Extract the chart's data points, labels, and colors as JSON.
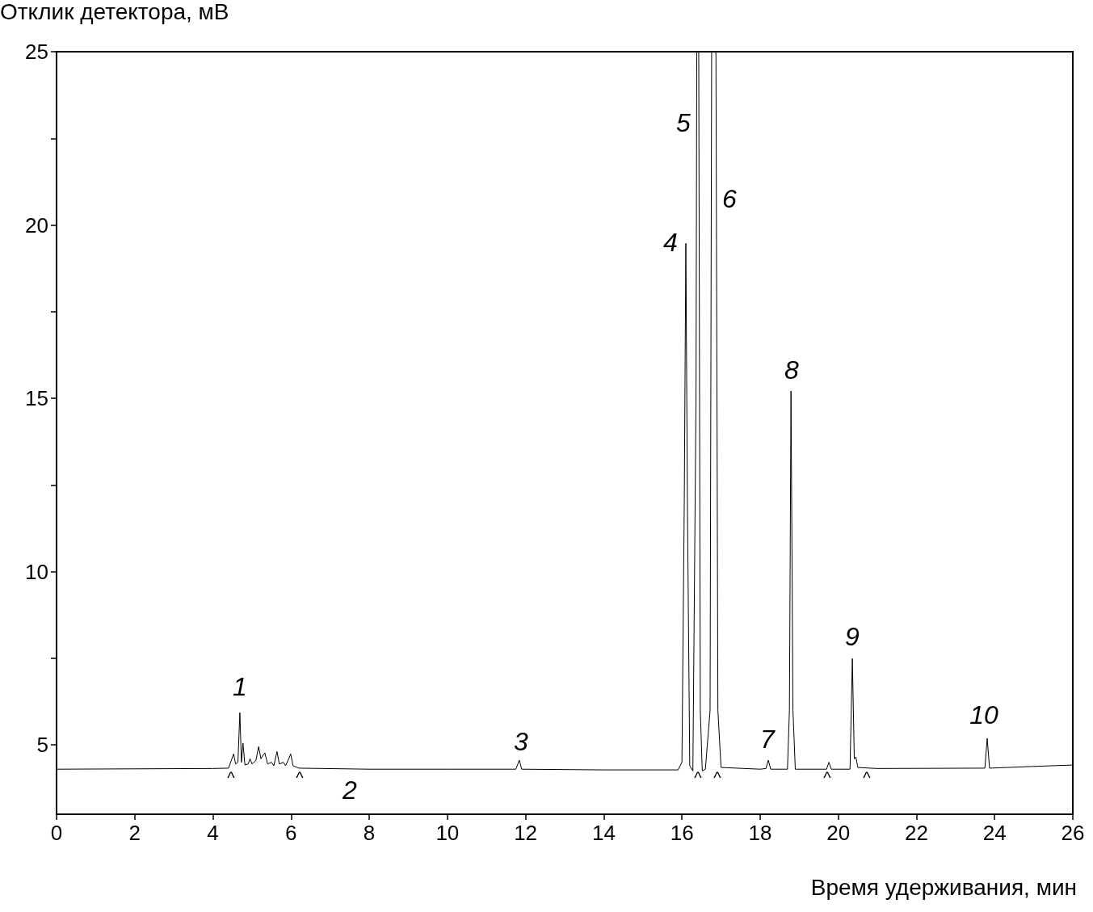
{
  "chart_data": {
    "type": "line",
    "xlabel": "Время удерживания, мин",
    "ylabel": "Отклик детектора, мВ",
    "xlim": [
      0,
      26
    ],
    "xticks": [
      0,
      2,
      4,
      6,
      8,
      10,
      12,
      14,
      16,
      18,
      20,
      22,
      24,
      26
    ],
    "ylim": [
      3,
      25
    ],
    "yticks": [
      5,
      {
        "value": 7.5,
        "label": null
      },
      10,
      {
        "value": 12.5,
        "label": null
      },
      15,
      {
        "value": 17.5,
        "label": null
      },
      20,
      {
        "value": 22.5,
        "label": null
      },
      25
    ],
    "series": [
      {
        "color": "#000000",
        "x": [
          0,
          2,
          4,
          4.4,
          4.47,
          4.53,
          4.58,
          4.64,
          4.69,
          4.73,
          4.77,
          4.82,
          4.9,
          4.95,
          5.0,
          5.1,
          5.17,
          5.23,
          5.28,
          5.33,
          5.4,
          5.5,
          5.56,
          5.64,
          5.7,
          5.8,
          5.86,
          5.94,
          5.99,
          6.05,
          6.2,
          8,
          10,
          11.75,
          11.84,
          11.9,
          14,
          15.9,
          16.0,
          16.06,
          16.1,
          16.14,
          16.2,
          16.28,
          16.36,
          16.38,
          16.4,
          16.43,
          16.47,
          16.52,
          16.6,
          16.72,
          16.76,
          16.8,
          16.87,
          16.92,
          17.0,
          18,
          18.15,
          18.21,
          18.27,
          18.7,
          18.75,
          18.79,
          18.84,
          18.9,
          19.7,
          19.76,
          19.82,
          20.3,
          20.36,
          20.41,
          20.45,
          20.5,
          21,
          23.75,
          23.81,
          23.87,
          25,
          26
        ],
        "values": [
          4.3,
          4.31,
          4.32,
          4.33,
          4.55,
          4.74,
          4.45,
          4.5,
          5.93,
          4.5,
          5.05,
          4.42,
          4.45,
          4.6,
          4.45,
          4.55,
          4.95,
          4.6,
          4.7,
          4.77,
          4.45,
          4.5,
          4.4,
          4.81,
          4.45,
          4.5,
          4.4,
          4.6,
          4.74,
          4.4,
          4.33,
          4.3,
          4.3,
          4.3,
          4.56,
          4.3,
          4.28,
          4.28,
          4.5,
          12,
          19.47,
          12,
          4.4,
          4.25,
          15,
          25,
          null,
          25,
          6,
          4.25,
          4.3,
          6,
          25,
          null,
          25,
          6,
          4.35,
          4.3,
          4.32,
          4.56,
          4.3,
          4.3,
          6,
          15.21,
          6,
          4.3,
          4.3,
          4.5,
          4.3,
          4.3,
          7.49,
          4.6,
          4.65,
          4.35,
          4.32,
          4.33,
          5.19,
          4.33,
          4.38,
          4.42
        ]
      }
    ],
    "annotations": [
      "1",
      "2",
      "3",
      "4",
      "5",
      "6",
      "7",
      "8",
      "9",
      "10",
      "^",
      "^",
      "^",
      "^",
      "^",
      "^"
    ]
  }
}
